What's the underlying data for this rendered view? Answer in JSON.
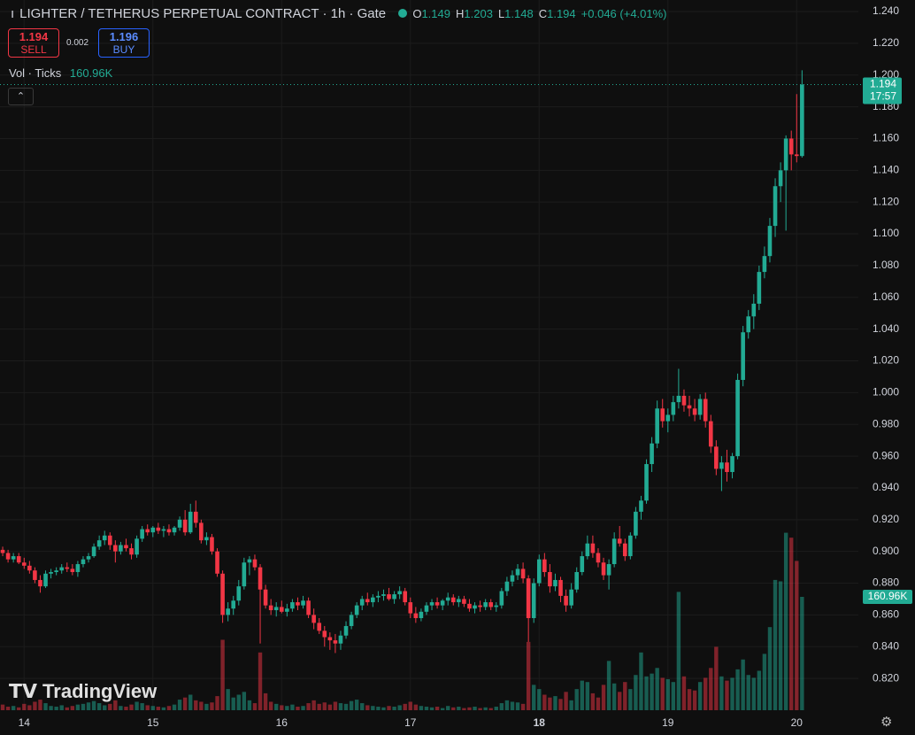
{
  "chart_data": {
    "type": "candlestick",
    "title": "LIGHTER / TETHERUS PERPETUAL CONTRACT · 1h · Gate",
    "up_color": "#22ab94",
    "down_color": "#f23645",
    "ylim": [
      0.8,
      1.24
    ],
    "yticks": [
      {
        "value": 0.82,
        "label": "0.820"
      },
      {
        "value": 0.84,
        "label": "0.840"
      },
      {
        "value": 0.86,
        "label": "0.860"
      },
      {
        "value": 0.88,
        "label": "0.880"
      },
      {
        "value": 0.9,
        "label": "0.900"
      },
      {
        "value": 0.92,
        "label": "0.920"
      },
      {
        "value": 0.94,
        "label": "0.940"
      },
      {
        "value": 0.96,
        "label": "0.960"
      },
      {
        "value": 0.98,
        "label": "0.980"
      },
      {
        "value": 1.0,
        "label": "1.000"
      },
      {
        "value": 1.02,
        "label": "1.020"
      },
      {
        "value": 1.04,
        "label": "1.040"
      },
      {
        "value": 1.06,
        "label": "1.060"
      },
      {
        "value": 1.08,
        "label": "1.080"
      },
      {
        "value": 1.1,
        "label": "1.100"
      },
      {
        "value": 1.12,
        "label": "1.120"
      },
      {
        "value": 1.14,
        "label": "1.140"
      },
      {
        "value": 1.16,
        "label": "1.160"
      },
      {
        "value": 1.18,
        "label": "1.180"
      },
      {
        "value": 1.2,
        "label": "1.200"
      },
      {
        "value": 1.22,
        "label": "1.220"
      },
      {
        "value": 1.24,
        "label": "1.240"
      }
    ],
    "xlim": [
      -0.5,
      159.5
    ],
    "xticks": [
      {
        "value": 4,
        "label": "14"
      },
      {
        "value": 28,
        "label": "15"
      },
      {
        "value": 52,
        "label": "16"
      },
      {
        "value": 76,
        "label": "17"
      },
      {
        "value": 100,
        "label": "18"
      },
      {
        "value": 124,
        "label": "19"
      },
      {
        "value": 148,
        "label": "20"
      }
    ],
    "grid": true,
    "candles": [
      [
        0.901,
        0.903,
        0.897,
        0.899
      ],
      [
        0.899,
        0.901,
        0.893,
        0.895
      ],
      [
        0.895,
        0.899,
        0.893,
        0.897
      ],
      [
        0.897,
        0.899,
        0.892,
        0.893
      ],
      [
        0.893,
        0.896,
        0.889,
        0.891
      ],
      [
        0.891,
        0.894,
        0.886,
        0.888
      ],
      [
        0.888,
        0.89,
        0.88,
        0.882
      ],
      [
        0.882,
        0.885,
        0.874,
        0.878
      ],
      [
        0.878,
        0.888,
        0.877,
        0.886
      ],
      [
        0.886,
        0.889,
        0.883,
        0.887
      ],
      [
        0.887,
        0.89,
        0.885,
        0.888
      ],
      [
        0.888,
        0.892,
        0.886,
        0.89
      ],
      [
        0.89,
        0.893,
        0.887,
        0.889
      ],
      [
        0.889,
        0.892,
        0.885,
        0.887
      ],
      [
        0.887,
        0.894,
        0.884,
        0.892
      ],
      [
        0.892,
        0.897,
        0.89,
        0.895
      ],
      [
        0.895,
        0.899,
        0.893,
        0.897
      ],
      [
        0.897,
        0.905,
        0.896,
        0.903
      ],
      [
        0.903,
        0.91,
        0.901,
        0.907
      ],
      [
        0.907,
        0.913,
        0.904,
        0.91
      ],
      [
        0.91,
        0.912,
        0.901,
        0.904
      ],
      [
        0.904,
        0.907,
        0.893,
        0.9
      ],
      [
        0.9,
        0.906,
        0.898,
        0.904
      ],
      [
        0.904,
        0.908,
        0.9,
        0.902
      ],
      [
        0.902,
        0.905,
        0.895,
        0.898
      ],
      [
        0.898,
        0.91,
        0.896,
        0.908
      ],
      [
        0.908,
        0.916,
        0.906,
        0.914
      ],
      [
        0.914,
        0.917,
        0.91,
        0.912
      ],
      [
        0.912,
        0.916,
        0.909,
        0.915
      ],
      [
        0.915,
        0.918,
        0.911,
        0.913
      ],
      [
        0.913,
        0.916,
        0.909,
        0.914
      ],
      [
        0.914,
        0.917,
        0.91,
        0.912
      ],
      [
        0.912,
        0.916,
        0.91,
        0.915
      ],
      [
        0.915,
        0.922,
        0.913,
        0.92
      ],
      [
        0.92,
        0.926,
        0.91,
        0.912
      ],
      [
        0.912,
        0.93,
        0.911,
        0.925
      ],
      [
        0.925,
        0.932,
        0.915,
        0.918
      ],
      [
        0.918,
        0.92,
        0.905,
        0.907
      ],
      [
        0.907,
        0.912,
        0.904,
        0.909
      ],
      [
        0.909,
        0.911,
        0.898,
        0.9
      ],
      [
        0.9,
        0.902,
        0.884,
        0.886
      ],
      [
        0.886,
        0.888,
        0.855,
        0.86
      ],
      [
        0.86,
        0.868,
        0.856,
        0.864
      ],
      [
        0.864,
        0.872,
        0.86,
        0.869
      ],
      [
        0.869,
        0.882,
        0.866,
        0.878
      ],
      [
        0.878,
        0.896,
        0.876,
        0.893
      ],
      [
        0.893,
        0.897,
        0.885,
        0.895
      ],
      [
        0.895,
        0.898,
        0.888,
        0.89
      ],
      [
        0.89,
        0.892,
        0.842,
        0.876
      ],
      [
        0.876,
        0.879,
        0.864,
        0.866
      ],
      [
        0.866,
        0.87,
        0.86,
        0.863
      ],
      [
        0.863,
        0.868,
        0.859,
        0.865
      ],
      [
        0.865,
        0.869,
        0.861,
        0.862
      ],
      [
        0.862,
        0.867,
        0.859,
        0.864
      ],
      [
        0.864,
        0.87,
        0.862,
        0.868
      ],
      [
        0.868,
        0.871,
        0.863,
        0.866
      ],
      [
        0.866,
        0.872,
        0.864,
        0.869
      ],
      [
        0.869,
        0.871,
        0.858,
        0.86
      ],
      [
        0.86,
        0.864,
        0.851,
        0.855
      ],
      [
        0.855,
        0.858,
        0.848,
        0.85
      ],
      [
        0.85,
        0.853,
        0.84,
        0.846
      ],
      [
        0.846,
        0.849,
        0.838,
        0.844
      ],
      [
        0.844,
        0.848,
        0.836,
        0.842
      ],
      [
        0.842,
        0.85,
        0.838,
        0.847
      ],
      [
        0.847,
        0.856,
        0.845,
        0.853
      ],
      [
        0.853,
        0.862,
        0.851,
        0.86
      ],
      [
        0.86,
        0.868,
        0.858,
        0.866
      ],
      [
        0.866,
        0.872,
        0.863,
        0.87
      ],
      [
        0.87,
        0.874,
        0.866,
        0.868
      ],
      [
        0.868,
        0.873,
        0.865,
        0.871
      ],
      [
        0.871,
        0.875,
        0.868,
        0.872
      ],
      [
        0.872,
        0.876,
        0.869,
        0.873
      ],
      [
        0.873,
        0.877,
        0.869,
        0.87
      ],
      [
        0.87,
        0.875,
        0.867,
        0.873
      ],
      [
        0.873,
        0.878,
        0.87,
        0.875
      ],
      [
        0.875,
        0.877,
        0.866,
        0.868
      ],
      [
        0.868,
        0.871,
        0.858,
        0.861
      ],
      [
        0.861,
        0.865,
        0.855,
        0.858
      ],
      [
        0.858,
        0.864,
        0.856,
        0.862
      ],
      [
        0.862,
        0.868,
        0.86,
        0.866
      ],
      [
        0.866,
        0.87,
        0.863,
        0.868
      ],
      [
        0.868,
        0.871,
        0.864,
        0.866
      ],
      [
        0.866,
        0.87,
        0.863,
        0.869
      ],
      [
        0.869,
        0.874,
        0.866,
        0.871
      ],
      [
        0.871,
        0.873,
        0.866,
        0.868
      ],
      [
        0.868,
        0.872,
        0.865,
        0.87
      ],
      [
        0.87,
        0.872,
        0.865,
        0.867
      ],
      [
        0.867,
        0.87,
        0.862,
        0.864
      ],
      [
        0.864,
        0.868,
        0.861,
        0.866
      ],
      [
        0.866,
        0.869,
        0.862,
        0.865
      ],
      [
        0.865,
        0.87,
        0.863,
        0.868
      ],
      [
        0.868,
        0.87,
        0.863,
        0.865
      ],
      [
        0.865,
        0.868,
        0.862,
        0.866
      ],
      [
        0.866,
        0.877,
        0.864,
        0.875
      ],
      [
        0.875,
        0.884,
        0.872,
        0.881
      ],
      [
        0.881,
        0.888,
        0.878,
        0.885
      ],
      [
        0.885,
        0.892,
        0.882,
        0.889
      ],
      [
        0.889,
        0.893,
        0.88,
        0.883
      ],
      [
        0.883,
        0.885,
        0.843,
        0.858
      ],
      [
        0.858,
        0.883,
        0.855,
        0.88
      ],
      [
        0.88,
        0.898,
        0.878,
        0.895
      ],
      [
        0.895,
        0.899,
        0.884,
        0.887
      ],
      [
        0.887,
        0.892,
        0.874,
        0.878
      ],
      [
        0.878,
        0.886,
        0.875,
        0.882
      ],
      [
        0.882,
        0.884,
        0.868,
        0.872
      ],
      [
        0.872,
        0.876,
        0.862,
        0.866
      ],
      [
        0.866,
        0.88,
        0.864,
        0.876
      ],
      [
        0.876,
        0.89,
        0.874,
        0.887
      ],
      [
        0.887,
        0.9,
        0.885,
        0.897
      ],
      [
        0.897,
        0.91,
        0.895,
        0.905
      ],
      [
        0.905,
        0.91,
        0.896,
        0.899
      ],
      [
        0.899,
        0.902,
        0.89,
        0.893
      ],
      [
        0.893,
        0.896,
        0.882,
        0.885
      ],
      [
        0.885,
        0.895,
        0.876,
        0.892
      ],
      [
        0.892,
        0.912,
        0.89,
        0.908
      ],
      [
        0.908,
        0.916,
        0.903,
        0.905
      ],
      [
        0.905,
        0.908,
        0.894,
        0.897
      ],
      [
        0.897,
        0.912,
        0.895,
        0.91
      ],
      [
        0.91,
        0.928,
        0.908,
        0.925
      ],
      [
        0.925,
        0.935,
        0.92,
        0.932
      ],
      [
        0.932,
        0.958,
        0.93,
        0.955
      ],
      [
        0.955,
        0.972,
        0.95,
        0.968
      ],
      [
        0.968,
        0.995,
        0.965,
        0.99
      ],
      [
        0.99,
        0.996,
        0.978,
        0.982
      ],
      [
        0.982,
        0.99,
        0.975,
        0.986
      ],
      [
        0.986,
        0.998,
        0.982,
        0.994
      ],
      [
        0.994,
        1.015,
        0.99,
        0.998
      ],
      [
        0.998,
        1.002,
        0.988,
        0.992
      ],
      [
        0.992,
        0.998,
        0.985,
        0.99
      ],
      [
        0.99,
        0.996,
        0.982,
        0.986
      ],
      [
        0.986,
        0.999,
        0.983,
        0.996
      ],
      [
        0.996,
        1.0,
        0.978,
        0.982
      ],
      [
        0.982,
        0.986,
        0.962,
        0.966
      ],
      [
        0.966,
        0.97,
        0.948,
        0.952
      ],
      [
        0.952,
        0.96,
        0.938,
        0.956
      ],
      [
        0.956,
        0.964,
        0.944,
        0.95
      ],
      [
        0.95,
        0.962,
        0.946,
        0.96
      ],
      [
        0.96,
        1.012,
        0.958,
        1.008
      ],
      [
        1.008,
        1.042,
        1.004,
        1.038
      ],
      [
        1.038,
        1.052,
        1.034,
        1.048
      ],
      [
        1.048,
        1.062,
        1.04,
        1.056
      ],
      [
        1.056,
        1.08,
        1.052,
        1.076
      ],
      [
        1.076,
        1.092,
        1.072,
        1.086
      ],
      [
        1.086,
        1.11,
        1.082,
        1.105
      ],
      [
        1.105,
        1.135,
        1.098,
        1.13
      ],
      [
        1.13,
        1.145,
        1.12,
        1.14
      ],
      [
        1.14,
        1.162,
        1.102,
        1.16
      ],
      [
        1.16,
        1.165,
        1.14,
        1.15
      ],
      [
        1.15,
        1.188,
        1.145,
        1.149
      ],
      [
        1.149,
        1.203,
        1.148,
        1.194
      ]
    ],
    "volume": {
      "name": "Vol · Ticks",
      "last_label": "160.96K",
      "lim": [
        0,
        402400
      ],
      "values": [
        8000,
        5000,
        6000,
        4000,
        9000,
        7000,
        12000,
        15000,
        10000,
        6000,
        5000,
        7000,
        4000,
        6000,
        8000,
        9000,
        11000,
        13000,
        10000,
        7000,
        9000,
        14000,
        6000,
        5000,
        8000,
        12000,
        10000,
        7000,
        6000,
        5000,
        4000,
        6000,
        8000,
        15000,
        18000,
        22000,
        14000,
        12000,
        9000,
        11000,
        20000,
        100000,
        30000,
        18000,
        22000,
        26000,
        14000,
        10000,
        82000,
        24000,
        12000,
        9000,
        7000,
        6000,
        8000,
        5000,
        6000,
        10000,
        14000,
        9000,
        11000,
        8000,
        12000,
        10000,
        9000,
        13000,
        15000,
        10000,
        7000,
        6000,
        5000,
        4000,
        6000,
        5000,
        7000,
        9000,
        12000,
        8000,
        6000,
        5000,
        4000,
        5000,
        3000,
        6000,
        4000,
        5000,
        3000,
        4000,
        5000,
        3000,
        4000,
        3000,
        5000,
        10000,
        14000,
        12000,
        11000,
        9000,
        97000,
        36000,
        30000,
        22000,
        18000,
        20000,
        16000,
        26000,
        14000,
        30000,
        42000,
        40000,
        24000,
        18000,
        36000,
        70000,
        38000,
        26000,
        40000,
        30000,
        50000,
        82000,
        48000,
        52000,
        60000,
        46000,
        44000,
        40000,
        168000,
        48000,
        30000,
        28000,
        40000,
        46000,
        60000,
        90000,
        48000,
        42000,
        46000,
        58000,
        72000,
        50000,
        46000,
        56000,
        80000,
        118000,
        185000,
        183000,
        252000,
        245000,
        212000,
        160960
      ]
    },
    "legend": {
      "o_label": "O",
      "o": "1.149",
      "h_label": "H",
      "h": "1.203",
      "l_label": "L",
      "l": "1.148",
      "c_label": "C",
      "c": "1.194",
      "change": "+0.046 (+4.01%)"
    },
    "price_tag": {
      "price": "1.194",
      "countdown": "17:57"
    },
    "watermark": "TradingView"
  },
  "ui": {
    "sell_price": "1.194",
    "sell": "SELL",
    "spread": "0.002",
    "buy_price": "1.196",
    "buy": "BUY"
  }
}
